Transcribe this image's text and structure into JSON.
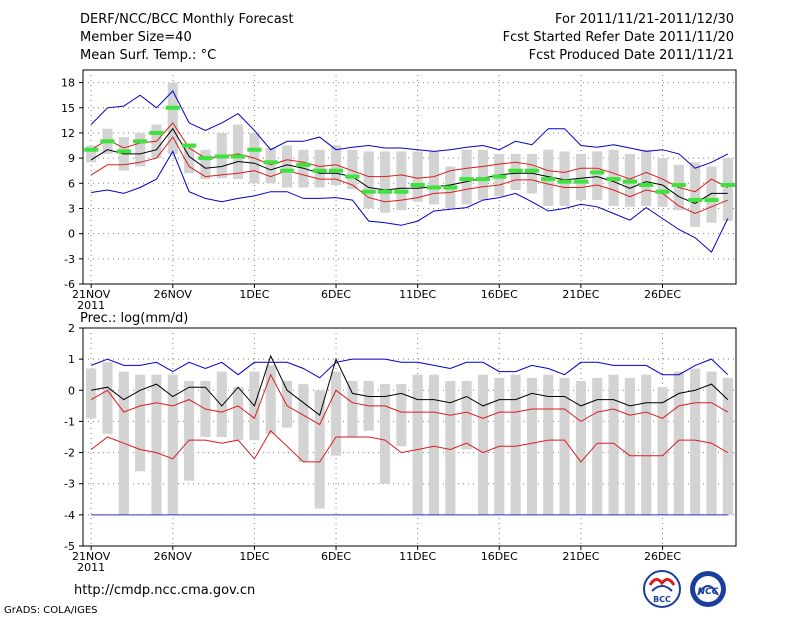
{
  "header": {
    "title": "DERF/NCC/BCC Monthly Forecast",
    "member_size": "Member Size=40",
    "variable": "Mean Surf. Temp.: °C",
    "period": "For 2011/11/21-2011/12/30",
    "fcst_started": "Fcst Started Refer Date 2011/11/20",
    "fcst_produced": "Fcst Produced Date 2011/11/21"
  },
  "footer": {
    "url": "http://cmdp.ncc.cma.gov.cn",
    "grads_credit": "GrADS: COLA/IGES",
    "logo_left_text": "BCC",
    "logo_right_text": "NCC"
  },
  "colors": {
    "mean": "#000000",
    "spread": "#d81e1e",
    "envelope": "#0000cc",
    "box": "#d3d3d3",
    "median": "#3de23d",
    "grid": "#808080"
  },
  "chart_data": [
    {
      "type": "line",
      "title": "Mean Surf. Temp.: °C",
      "x_tick_labels": [
        "21NOV",
        "26NOV",
        "1DEC",
        "6DEC",
        "11DEC",
        "16DEC",
        "21DEC",
        "26DEC"
      ],
      "x_tick_days": [
        1,
        6,
        11,
        16,
        21,
        26,
        31,
        36
      ],
      "x_year_label": "2011",
      "yticks": [
        -6,
        -3,
        0,
        3,
        6,
        9,
        12,
        15,
        18
      ],
      "ylim": [
        -6,
        19.5
      ],
      "xlim": [
        0.5,
        40.5
      ],
      "series": [
        {
          "name": "ensemble max",
          "color": "#0000cc",
          "values": [
            13,
            15,
            15.2,
            16.5,
            15,
            17,
            13.2,
            12.3,
            13.2,
            14.3,
            12.3,
            10,
            11,
            11,
            11.5,
            10,
            10.3,
            10.5,
            10.2,
            10.2,
            10,
            9.8,
            10,
            10.3,
            10.5,
            10,
            11,
            10.6,
            12.5,
            12.5,
            10.5,
            10.3,
            10.6,
            10.2,
            9.8,
            10,
            9.5,
            7.8,
            8.5,
            9.5
          ]
        },
        {
          "name": "mean + spread",
          "color": "#d81e1e",
          "values": [
            10,
            11.2,
            10.2,
            10.8,
            11,
            13.2,
            10.2,
            9,
            9.2,
            9.5,
            9,
            8.2,
            8.8,
            8.5,
            8,
            8.2,
            7.5,
            6.8,
            6.8,
            7,
            6.6,
            6.8,
            7.5,
            7.8,
            8,
            8.3,
            8.5,
            8.2,
            7.5,
            7.3,
            7.8,
            7.8,
            7.2,
            6.5,
            7.3,
            6.5,
            5.5,
            5,
            6.5,
            5.5
          ]
        },
        {
          "name": "ensemble mean",
          "color": "#000000",
          "values": [
            8.8,
            10,
            9.5,
            9.5,
            10,
            12.5,
            9.2,
            7.8,
            8,
            8.6,
            8.4,
            7.6,
            8.2,
            7.8,
            7.2,
            7.2,
            6.8,
            5.5,
            5.2,
            5.4,
            5.4,
            5.6,
            5.8,
            6.2,
            6.6,
            7,
            7.2,
            7.2,
            6.8,
            6.4,
            6.6,
            6.8,
            6.2,
            5.4,
            6.2,
            5.8,
            4.4,
            3.6,
            4.8,
            4.8
          ]
        },
        {
          "name": "mean - spread",
          "color": "#d81e1e",
          "values": [
            7,
            8.2,
            8.2,
            8.5,
            9,
            11.5,
            8,
            6.8,
            7,
            7.2,
            7.5,
            6.8,
            7.5,
            7,
            6.5,
            6.5,
            5.8,
            4.3,
            3.8,
            4,
            4.3,
            4.8,
            4.9,
            5.3,
            5.6,
            5.8,
            6.4,
            6.4,
            5.9,
            5.5,
            5.5,
            5.8,
            5.2,
            4.4,
            5.2,
            4.8,
            3.3,
            2.4,
            3.2,
            4
          ]
        },
        {
          "name": "ensemble min",
          "color": "#0000cc",
          "values": [
            4.9,
            5.2,
            4.8,
            5.5,
            6.5,
            9.8,
            5,
            4.2,
            3.8,
            4.2,
            4.5,
            5,
            5,
            4.2,
            4.2,
            4.3,
            4,
            1.5,
            1.3,
            1,
            1.5,
            2.7,
            2.9,
            3.1,
            4,
            4.3,
            4.8,
            3.8,
            2.7,
            3,
            3.5,
            3.2,
            2.4,
            1.6,
            3.1,
            1.8,
            0.5,
            -0.5,
            -2.2,
            1.8
          ]
        }
      ],
      "box_low": [
        8.5,
        9.5,
        7.5,
        8,
        9,
        9.5,
        7.2,
        6.5,
        6.6,
        6.5,
        6,
        6,
        5.5,
        5.5,
        5.5,
        5.8,
        5.3,
        3,
        2.5,
        2.8,
        3.8,
        3.5,
        3,
        3.5,
        4,
        4.5,
        5.2,
        4.8,
        3.3,
        3.3,
        4,
        4,
        3.3,
        3.2,
        3.3,
        3.2,
        2.8,
        0.8,
        1.3,
        1.5
      ],
      "box_high": [
        10.5,
        12.5,
        11.5,
        12,
        13,
        18,
        10.5,
        10,
        12,
        13,
        12,
        10.2,
        10.5,
        10,
        10,
        10.5,
        10,
        9.8,
        9.8,
        9.8,
        9.8,
        9.8,
        8,
        10,
        10,
        9.5,
        9.5,
        9.5,
        10,
        9.8,
        9.5,
        9.8,
        10,
        9.5,
        10,
        9,
        8.2,
        8.5,
        8,
        9
      ],
      "medians": [
        10,
        11,
        9.8,
        11,
        12,
        15,
        10.5,
        9,
        9.2,
        9.2,
        10,
        8.5,
        7.5,
        8.2,
        7.5,
        7.5,
        6.8,
        5,
        5,
        5,
        5.8,
        5.5,
        5.5,
        6.5,
        6.5,
        6.8,
        7.5,
        7.5,
        6.5,
        6.2,
        6.2,
        7.3,
        6.5,
        6.2,
        5.8,
        5,
        5.8,
        4,
        4,
        5.8
      ]
    },
    {
      "type": "line",
      "title": "Prec.: log(mm/d)",
      "x_tick_labels": [
        "21NOV",
        "26NOV",
        "1DEC",
        "6DEC",
        "11DEC",
        "16DEC",
        "21DEC",
        "26DEC"
      ],
      "x_tick_days": [
        1,
        6,
        11,
        16,
        21,
        26,
        31,
        36
      ],
      "x_year_label": "2011",
      "yticks": [
        -5,
        -4,
        -3,
        -2,
        -1,
        0,
        1,
        2
      ],
      "ylim": [
        -5,
        2
      ],
      "xlim": [
        0.5,
        40.5
      ],
      "series": [
        {
          "name": "ensemble max",
          "color": "#0000cc",
          "values": [
            0.8,
            1,
            0.8,
            0.8,
            0.9,
            0.6,
            0.9,
            0.7,
            0.9,
            0.5,
            0.9,
            0.9,
            0.9,
            0.7,
            0.4,
            0.9,
            1,
            1,
            1,
            0.9,
            0.9,
            0.8,
            0.7,
            0.9,
            0.9,
            0.6,
            0.6,
            0.8,
            0.7,
            0.5,
            0.9,
            0.9,
            0.8,
            0.8,
            0.8,
            0.5,
            0.5,
            0.8,
            1,
            0.5
          ]
        },
        {
          "name": "mean + spread",
          "color": "#000000",
          "values": [
            0,
            0.1,
            -0.3,
            0,
            0.2,
            -0.2,
            0.1,
            0.1,
            -0.5,
            0.1,
            -0.5,
            1.1,
            0,
            -0.4,
            -0.8,
            1,
            -0.1,
            -0.2,
            -0.2,
            -0.1,
            -0.3,
            -0.3,
            -0.4,
            -0.2,
            -0.5,
            -0.3,
            -0.3,
            -0.1,
            -0.2,
            -0.2,
            -0.5,
            -0.3,
            -0.3,
            -0.5,
            -0.4,
            -0.4,
            -0.1,
            0,
            0.2,
            -0.3
          ]
        },
        {
          "name": "ensemble mean",
          "color": "#d81e1e",
          "values": [
            -0.3,
            0,
            -0.7,
            -0.5,
            -0.4,
            -0.5,
            -0.3,
            -0.6,
            -0.7,
            -0.5,
            -0.9,
            0.5,
            -0.5,
            -0.8,
            -1.1,
            0,
            -0.4,
            -0.5,
            -0.5,
            -0.7,
            -0.7,
            -0.7,
            -0.8,
            -0.7,
            -0.9,
            -0.7,
            -0.7,
            -0.6,
            -0.6,
            -0.6,
            -1,
            -0.7,
            -0.6,
            -0.8,
            -0.7,
            -0.9,
            -0.5,
            -0.4,
            -0.4,
            -0.7
          ]
        },
        {
          "name": "mean - spread",
          "color": "#d81e1e",
          "values": [
            -1.9,
            -1.5,
            -1.7,
            -1.9,
            -2,
            -2.2,
            -1.6,
            -1.6,
            -1.7,
            -1.6,
            -2.2,
            -1.3,
            -1.8,
            -2.3,
            -2.3,
            -1.5,
            -1.5,
            -1.5,
            -1.6,
            -2,
            -1.9,
            -1.8,
            -1.9,
            -1.7,
            -2,
            -1.8,
            -1.8,
            -1.7,
            -1.6,
            -1.6,
            -2.3,
            -1.7,
            -1.7,
            -2.1,
            -2.1,
            -2.1,
            -1.6,
            -1.6,
            -1.7,
            -2
          ]
        },
        {
          "name": "ensemble min",
          "color": "#3333cc",
          "values": [
            -4,
            -4,
            -4,
            -4,
            -4,
            -4,
            -4,
            -4,
            -4,
            -4,
            -4,
            -4,
            -4,
            -4,
            -4,
            -4,
            -4,
            -4,
            -4,
            -4,
            -4,
            -4,
            -4,
            -4,
            -4,
            -4,
            -4,
            -4,
            -4,
            -4,
            -4,
            -4,
            -4,
            -4,
            -4,
            -4,
            -4,
            -4,
            -4,
            -4
          ]
        }
      ],
      "box_low": [
        -0.9,
        -1.4,
        -4,
        -2.6,
        -4,
        -4,
        -2.9,
        -1.5,
        -1.5,
        -1.6,
        -1.6,
        -1.4,
        -1.2,
        -2.3,
        -3.8,
        -2.1,
        -1.5,
        -1.3,
        -3,
        -1.8,
        -4,
        -4,
        -4,
        -1.9,
        -4,
        -4,
        -4,
        -4,
        -4,
        -4,
        -4,
        -4,
        -4,
        -4,
        -4,
        -4,
        -4,
        -4,
        -4,
        -4
      ],
      "box_high": [
        0.7,
        0.9,
        0.6,
        0.5,
        0.5,
        0.5,
        0.3,
        0.3,
        0.6,
        0.1,
        0.6,
        0.8,
        0.3,
        0.2,
        0,
        0.6,
        0.3,
        0.3,
        0.2,
        0.2,
        0.5,
        0.5,
        0.3,
        0.3,
        0.5,
        0.4,
        0.5,
        0.4,
        0.5,
        0.4,
        0.3,
        0.4,
        0.5,
        0.4,
        0.5,
        0.1,
        0.6,
        0.7,
        0.6,
        0.4
      ]
    }
  ]
}
